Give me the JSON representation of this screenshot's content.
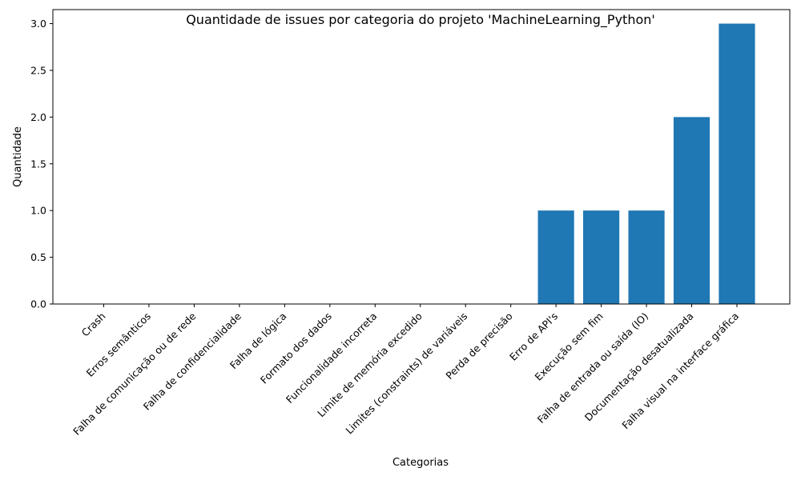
{
  "chart_data": {
    "type": "bar",
    "title": "Quantidade de issues por categoria do projeto 'MachineLearning_Python'",
    "xlabel": "Categorias",
    "ylabel": "Quantidade",
    "categories": [
      "Crash",
      "Erros semânticos",
      "Falha de comunicação ou de rede",
      "Falha de confidencialidade",
      "Falha de lógica",
      "Formato dos dados",
      "Funcionalidade incorreta",
      "Limite de memória excedido",
      "Limites (constraints) de variáveis",
      "Perda de precisão",
      "Erro de API's",
      "Execução sem fim",
      "Falha de entrada ou saída (IO)",
      "Documentação desatualizada",
      "Falha visual na interface gráfica"
    ],
    "values": [
      0,
      0,
      0,
      0,
      0,
      0,
      0,
      0,
      0,
      0,
      1,
      1,
      1,
      2,
      3
    ],
    "ylim": [
      0,
      3.15
    ],
    "yticks": [
      "0.0",
      "0.5",
      "1.0",
      "1.5",
      "2.0",
      "2.5",
      "3.0"
    ],
    "bar_color": "#1f77b4",
    "grid": false
  }
}
